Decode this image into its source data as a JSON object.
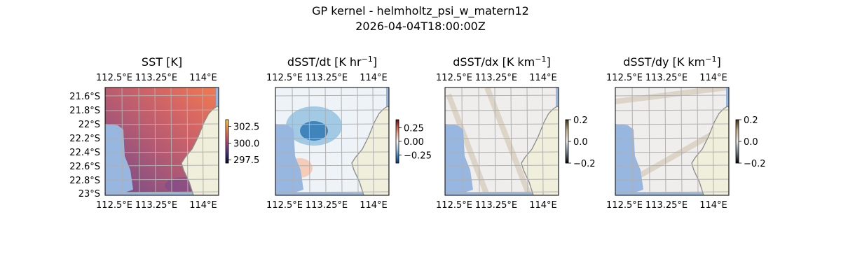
{
  "figure": {
    "title_line1": "GP kernel - helmholtz_psi_w_matern12",
    "title_line2": "2026-04-04T18:00:00Z"
  },
  "chart_data": {
    "type": "heatmap",
    "panels": [
      {
        "title": "SST [K]",
        "title_sup": "",
        "cmap": [
          "#0b0724",
          "#3b2a7a",
          "#8a3f7e",
          "#d2575e",
          "#f08b46",
          "#f7d14a"
        ],
        "colorbar_ticks": [
          "302.5",
          "300.0",
          "297.5"
        ],
        "colorbar_values": [
          302.5,
          300.0,
          297.5
        ],
        "colorbar_range": [
          297,
          303.5
        ],
        "x_ticks_top": [
          "112.5°E",
          "113.25°E",
          "114°E"
        ],
        "x_ticks_bottom": [
          "112.5°E",
          "113.25°E",
          "114°E"
        ],
        "y_ticks": [
          "21.6°S",
          "21.8°S",
          "22°S",
          "22.2°S",
          "22.4°S",
          "22.6°S",
          "22.8°S",
          "23°S"
        ]
      },
      {
        "title": "dSST/dt [K hr",
        "title_sup": "−1",
        "cmap": [
          "#0b3a75",
          "#3a87c0",
          "#a9cfe5",
          "#f7f7f7",
          "#f5b596",
          "#d45a4a",
          "#6a0a1f"
        ],
        "colorbar_ticks": [
          "0.25",
          "0.00",
          "−0.25"
        ],
        "colorbar_values": [
          0.25,
          0.0,
          -0.25
        ],
        "colorbar_range": [
          -0.4,
          0.4
        ],
        "x_ticks_top": [
          "112.5°E",
          "113.25°E",
          "114°E"
        ],
        "x_ticks_bottom": [
          "112.5°E",
          "113.25°E",
          "114°E"
        ],
        "y_ticks": []
      },
      {
        "title": "dSST/dx [K km",
        "title_sup": "−1",
        "cmap": [
          "#000000",
          "#6f7f8c",
          "#e8e6e4",
          "#c9b28d",
          "#3a2a10"
        ],
        "colorbar_ticks": [
          "0.2",
          "0.0",
          "−0.2"
        ],
        "colorbar_values": [
          0.2,
          0.0,
          -0.2
        ],
        "colorbar_range": [
          -0.2,
          0.2
        ],
        "x_ticks_top": [
          "112.5°E",
          "113.25°E",
          "114°E"
        ],
        "x_ticks_bottom": [
          "112.5°E",
          "113.25°E",
          "114°E"
        ],
        "y_ticks": []
      },
      {
        "title": "dSST/dy [K km",
        "title_sup": "−1",
        "cmap": [
          "#000000",
          "#6f7f8c",
          "#e8e6e4",
          "#c9b28d",
          "#3a2a10"
        ],
        "colorbar_ticks": [
          "0.2",
          "0.0",
          "−0.2"
        ],
        "colorbar_values": [
          0.2,
          0.0,
          -0.2
        ],
        "colorbar_range": [
          -0.2,
          0.2
        ],
        "x_ticks_top": [
          "112.5°E",
          "113.25°E",
          "114°E"
        ],
        "x_ticks_bottom": [
          "112.5°E",
          "113.25°E",
          "114°E"
        ],
        "y_ticks": []
      }
    ],
    "colors": {
      "land": "#efefdb",
      "masked": "#97b6e0",
      "coast": "#8a8a8a",
      "grid": "#b0b0b0"
    }
  }
}
